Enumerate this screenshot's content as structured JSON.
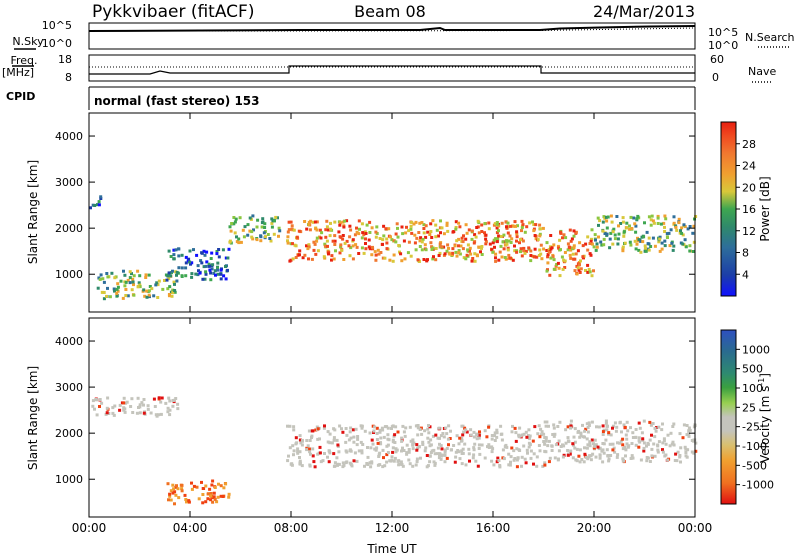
{
  "header": {
    "station": "Pykkvibaer (fitACF)",
    "beam": "Beam 08",
    "date": "24/Mar/2013"
  },
  "nsky_panel": {
    "left_label": "N.Sky",
    "left_ticks": [
      "10^5",
      "10^0"
    ],
    "right_label": "N.Search",
    "right_ticks": [
      "10^5",
      "10^0"
    ]
  },
  "freq_panel": {
    "left_label_1": "Freq.",
    "left_label_2": "[MHz]",
    "left_ticks": [
      "18",
      "8"
    ],
    "right_label": "Nave",
    "right_ticks": [
      "60",
      "0"
    ]
  },
  "cpid": {
    "label": "CPID",
    "text": "normal (fast stereo) 153"
  },
  "chart_data": [
    {
      "type": "heatmap",
      "name": "power",
      "ylabel": "Slant Range [km]",
      "ylim": [
        180,
        4500
      ],
      "yticks": [
        "1000",
        "2000",
        "3000",
        "4000"
      ],
      "xlabel": "Time UT",
      "xticks": [
        "00:00",
        "04:00",
        "08:00",
        "12:00",
        "16:00",
        "20:00",
        "00:00"
      ],
      "colorbar": {
        "label": "Power [dB]",
        "ticks": [
          "4",
          "8",
          "12",
          "16",
          "20",
          "24",
          "28"
        ],
        "colors": [
          "#1010ff",
          "#1c3ea8",
          "#2e6e9a",
          "#2f8a6a",
          "#3ea650",
          "#8bc640",
          "#d8c83a",
          "#f0a030",
          "#f07830",
          "#f04a20",
          "#e82010"
        ]
      },
      "echo_regions": [
        {
          "t": [
            0.0,
            0.5
          ],
          "range": [
            2450,
            2750
          ],
          "level": "low"
        },
        {
          "t": [
            0.3,
            3.5
          ],
          "range": [
            500,
            1100
          ],
          "level": "mid"
        },
        {
          "t": [
            3.0,
            5.5
          ],
          "range": [
            900,
            1600
          ],
          "level": "low"
        },
        {
          "t": [
            5.5,
            7.5
          ],
          "range": [
            1700,
            2300
          ],
          "level": "mid"
        },
        {
          "t": [
            7.8,
            18.0
          ],
          "range": [
            1300,
            2200
          ],
          "level": "high"
        },
        {
          "t": [
            18.0,
            20.0
          ],
          "range": [
            1000,
            2000
          ],
          "level": "high"
        },
        {
          "t": [
            20.0,
            24.0
          ],
          "range": [
            1500,
            2300
          ],
          "level": "mid"
        }
      ]
    },
    {
      "type": "heatmap",
      "name": "velocity",
      "ylabel": "Slant Range [km]",
      "ylim": [
        180,
        4500
      ],
      "yticks": [
        "1000",
        "2000",
        "3000",
        "4000"
      ],
      "xlabel": "Time UT",
      "xticks": [
        "00:00",
        "04:00",
        "08:00",
        "12:00",
        "16:00",
        "20:00",
        "00:00"
      ],
      "colorbar": {
        "label_main": "Velocity",
        "label_unit": "[m s",
        "label_sup": "-1",
        "label_close": "]",
        "ticks": [
          "1000",
          "500",
          "100",
          "25",
          "-25",
          "-100",
          "-500",
          "-1000"
        ],
        "colors": [
          "#2e50c0",
          "#2a6a90",
          "#2e8a70",
          "#3aa040",
          "#98d050",
          "#c4c4bc",
          "#d8c070",
          "#f0a030",
          "#f07020",
          "#f04010",
          "#e01010"
        ]
      },
      "echo_regions": [
        {
          "t": [
            0.0,
            3.5
          ],
          "range": [
            2400,
            2800
          ],
          "level": "ground"
        },
        {
          "t": [
            7.8,
            18.0
          ],
          "range": [
            1300,
            2200
          ],
          "level": "ground"
        },
        {
          "t": [
            18.0,
            24.0
          ],
          "range": [
            1400,
            2300
          ],
          "level": "ground"
        },
        {
          "t": [
            3.0,
            5.5
          ],
          "range": [
            500,
            1000
          ],
          "level": "negative"
        }
      ]
    }
  ]
}
